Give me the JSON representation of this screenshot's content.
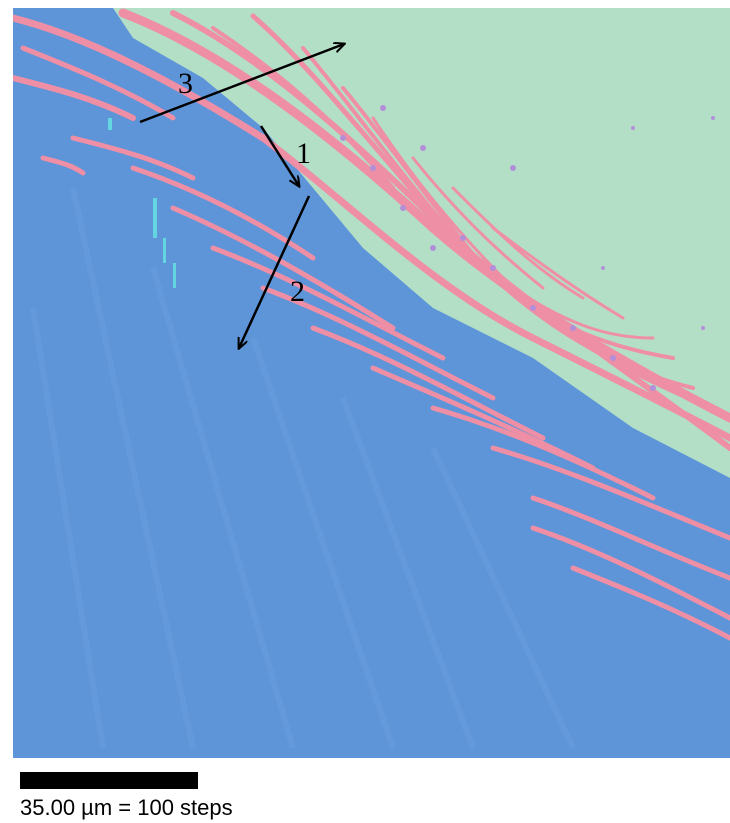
{
  "figure": {
    "scale_bar": {
      "label": "35.00 µm = 100 steps"
    },
    "arrows": [
      {
        "label": "1"
      },
      {
        "label": "2"
      },
      {
        "label": "3"
      }
    ],
    "colors": {
      "grain_blue": "#5b93d6",
      "grain_green": "#b4e0c8",
      "lamella_pink": "#ef8ea6",
      "spot_purple": "#b08ed8",
      "spot_cyan": "#63d6e0",
      "arrow": "#000000"
    }
  }
}
